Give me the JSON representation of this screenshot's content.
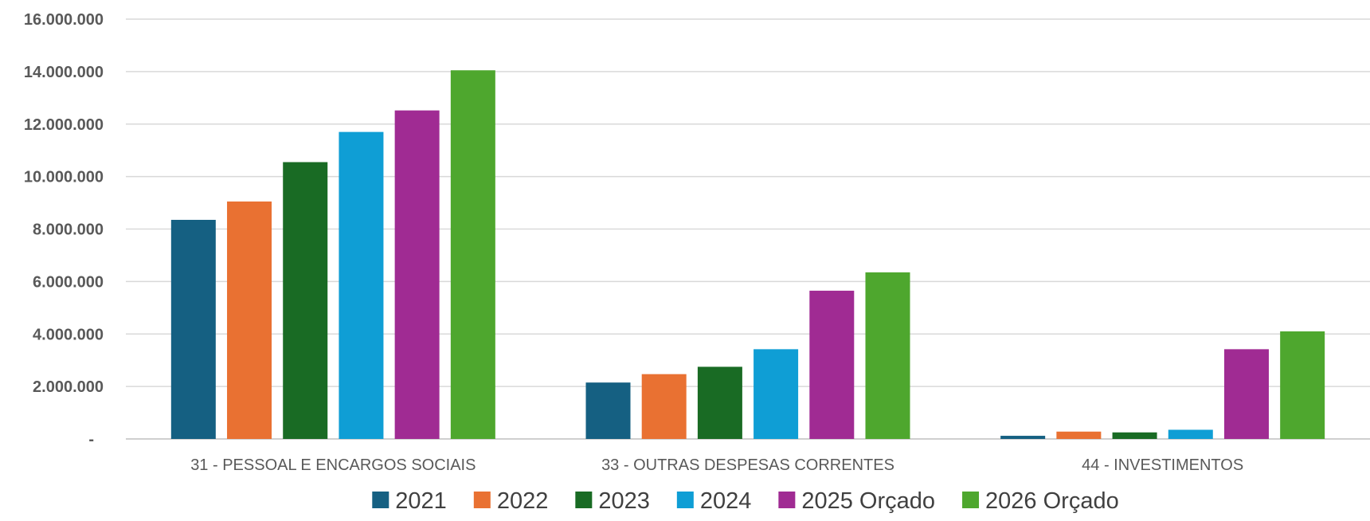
{
  "chart_data": {
    "type": "bar",
    "categories": [
      "31 - PESSOAL E ENCARGOS SOCIAIS",
      "33 - OUTRAS DESPESAS CORRENTES",
      "44 - INVESTIMENTOS"
    ],
    "series": [
      {
        "name": "2021",
        "color": "#156082",
        "values": [
          8350000,
          2150000,
          120000
        ]
      },
      {
        "name": "2022",
        "color": "#E97132",
        "values": [
          9050000,
          2470000,
          280000
        ]
      },
      {
        "name": "2023",
        "color": "#196B24",
        "values": [
          10550000,
          2750000,
          250000
        ]
      },
      {
        "name": "2024",
        "color": "#0F9ED5",
        "values": [
          11700000,
          3420000,
          350000
        ]
      },
      {
        "name": "2025 Orçado",
        "color": "#A02B93",
        "values": [
          12520000,
          5650000,
          3420000
        ]
      },
      {
        "name": "2026 Orçado",
        "color": "#4EA72E",
        "values": [
          14050000,
          6350000,
          4100000
        ]
      }
    ],
    "y_ticks": [
      "-",
      "2.000.000",
      "4.000.000",
      "6.000.000",
      "8.000.000",
      "10.000.000",
      "12.000.000",
      "14.000.000",
      "16.000.000"
    ],
    "ylim": [
      0,
      16000000
    ],
    "grid": true,
    "legend": "bottom",
    "title": "",
    "xlabel": "",
    "ylabel": ""
  }
}
